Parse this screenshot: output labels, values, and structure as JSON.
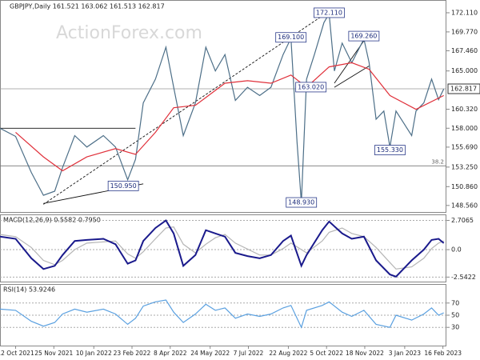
{
  "header": "GBPJPY,Daily  161.521 163.062 161.513 162.817",
  "watermark": "ActionForex.com",
  "chart_data": [
    {
      "type": "line",
      "xlim": [
        "2021-09-24",
        "2023-02-20"
      ],
      "ylim": [
        147.76,
        173.67
      ],
      "grid": false,
      "yticks": [
        {
          "value": 172.11,
          "label": "172.110"
        },
        {
          "value": 169.77,
          "label": "169.770"
        },
        {
          "value": 167.46,
          "label": "167.460"
        },
        {
          "value": 165,
          "label": "165.000"
        },
        {
          "value": 160.32,
          "label": "160.320"
        },
        {
          "value": 158,
          "label": "158.000"
        },
        {
          "value": 155.69,
          "label": "155.690"
        },
        {
          "value": 153.25,
          "label": "153.250"
        },
        {
          "value": 150.86,
          "label": "150.860"
        },
        {
          "value": 148.56,
          "label": "148.560"
        }
      ],
      "last_price": {
        "value": 162.817,
        "label": "162.817"
      },
      "levels": [
        {
          "value": 153.4,
          "label": "38.2"
        }
      ],
      "series": [
        {
          "color": "#4d6f88",
          "x": [
            "2021-09-24",
            "2021-10-12",
            "2021-10-30",
            "2021-11-13",
            "2021-11-26",
            "2021-12-05",
            "2021-12-19",
            "2022-01-02",
            "2022-01-21",
            "2022-02-04",
            "2022-02-18",
            "2022-02-27",
            "2022-03-08",
            "2022-03-22",
            "2022-04-03",
            "2022-04-12",
            "2022-04-23",
            "2022-05-07",
            "2022-05-19",
            "2022-05-30",
            "2022-06-10",
            "2022-06-22",
            "2022-07-06",
            "2022-07-20",
            "2022-08-02",
            "2022-08-16",
            "2022-08-25",
            "2022-09-01",
            "2022-09-06",
            "2022-09-12",
            "2022-09-21",
            "2022-10-02",
            "2022-10-08",
            "2022-10-14",
            "2022-10-23",
            "2022-11-03",
            "2022-11-17",
            "2022-11-23",
            "2022-12-01",
            "2022-12-10",
            "2022-12-17",
            "2022-12-24",
            "2023-01-02",
            "2023-01-11",
            "2023-01-16",
            "2023-01-25",
            "2023-02-03",
            "2023-02-11",
            "2023-02-17"
          ],
          "values": [
            158.0,
            157.0,
            152.6,
            149.8,
            150.3,
            153.2,
            157.1,
            155.7,
            157.1,
            155.7,
            151.7,
            154.2,
            161.1,
            164.0,
            167.9,
            163.0,
            157.1,
            161.1,
            167.9,
            165.0,
            167.0,
            161.4,
            163.0,
            162.0,
            163.0,
            167.0,
            169.0,
            156.3,
            148.9,
            164.0,
            167.0,
            170.9,
            172.0,
            165.0,
            168.4,
            166.0,
            168.9,
            166.0,
            159.1,
            160.1,
            155.7,
            160.1,
            158.6,
            157.1,
            160.1,
            161.1,
            164.0,
            161.5,
            162.8
          ]
        },
        {
          "color": "#e0303a",
          "x": [
            "2021-10-12",
            "2021-11-13",
            "2021-12-05",
            "2022-01-02",
            "2022-02-04",
            "2022-02-27",
            "2022-03-22",
            "2022-04-12",
            "2022-05-07",
            "2022-06-10",
            "2022-07-06",
            "2022-08-02",
            "2022-08-25",
            "2022-09-12",
            "2022-10-08",
            "2022-11-03",
            "2022-11-23",
            "2022-12-17",
            "2023-01-16",
            "2023-02-17"
          ],
          "values": [
            157.5,
            154.5,
            152.8,
            154.5,
            155.5,
            154.8,
            157.5,
            160.5,
            160.8,
            163.5,
            163.8,
            163.5,
            164.5,
            163.0,
            165.5,
            166.0,
            165.2,
            162.0,
            160.3,
            162.0
          ]
        }
      ],
      "trendlines": [
        {
          "x": [
            "2021-11-13",
            "2022-10-08"
          ],
          "values": [
            148.7,
            172.3
          ],
          "dashed": true
        },
        {
          "x": [
            "2021-09-24",
            "2022-02-27"
          ],
          "values": [
            158.0,
            158.0
          ],
          "dashed": false
        },
        {
          "x": [
            "2021-11-13",
            "2022-03-08"
          ],
          "values": [
            148.8,
            151.2
          ],
          "dashed": false
        },
        {
          "x": [
            "2022-10-14",
            "2022-11-23"
          ],
          "values": [
            163.5,
            169.6
          ],
          "dashed": false
        },
        {
          "x": [
            "2022-10-14",
            "2022-11-23"
          ],
          "values": [
            163.0,
            165.6
          ],
          "dashed": false
        }
      ],
      "annotations": [
        {
          "x": "2022-10-08",
          "value": 172.11,
          "label": "172.110"
        },
        {
          "x": "2022-08-25",
          "value": 169.1,
          "label": "169.100"
        },
        {
          "x": "2022-11-17",
          "value": 169.26,
          "label": "169.260"
        },
        {
          "x": "2022-09-17",
          "value": 163.02,
          "label": "163.020"
        },
        {
          "x": "2022-12-17",
          "value": 155.33,
          "label": "155.330"
        },
        {
          "x": "2022-02-13",
          "value": 150.95,
          "label": "150.950"
        },
        {
          "x": "2022-09-06",
          "value": 148.93,
          "label": "148.930"
        }
      ]
    },
    {
      "type": "line",
      "title": "MACD(12,26,9) 0.5582 0.7950",
      "xlim": [
        "2021-09-24",
        "2023-02-20"
      ],
      "ylim": [
        -2.96,
        3.26
      ],
      "grid": true,
      "yticks": [
        2.7065,
        {
          "value": 0,
          "label": "0.0"
        },
        -2.5422
      ],
      "series": [
        {
          "color": "#b5b5b5",
          "x": [
            "2021-09-24",
            "2021-10-12",
            "2021-10-30",
            "2021-11-13",
            "2021-11-26",
            "2021-12-05",
            "2021-12-19",
            "2022-01-02",
            "2022-02-04",
            "2022-02-18",
            "2022-02-27",
            "2022-03-08",
            "2022-03-22",
            "2022-04-03",
            "2022-04-12",
            "2022-04-23",
            "2022-05-07",
            "2022-05-19",
            "2022-05-30",
            "2022-06-10",
            "2022-06-22",
            "2022-07-20",
            "2022-08-02",
            "2022-08-16",
            "2022-08-25",
            "2022-09-06",
            "2022-09-12",
            "2022-09-30",
            "2022-10-08",
            "2022-10-23",
            "2022-11-03",
            "2022-11-17",
            "2022-12-01",
            "2022-12-17",
            "2022-12-24",
            "2023-01-11",
            "2023-01-25",
            "2023-02-03",
            "2023-02-11",
            "2023-02-17"
          ],
          "values": [
            1.4,
            1.2,
            0.2,
            -1.0,
            -1.4,
            -1.0,
            0.0,
            0.6,
            0.8,
            -0.4,
            -0.8,
            -0.2,
            1.0,
            2.0,
            2.1,
            0.5,
            -0.3,
            0.5,
            1.1,
            1.4,
            0.6,
            -0.5,
            -0.5,
            0.1,
            0.6,
            0.0,
            -0.3,
            0.8,
            1.6,
            2.0,
            1.5,
            1.2,
            0.2,
            -1.2,
            -1.8,
            -1.6,
            -0.8,
            0.1,
            0.6,
            0.8
          ]
        },
        {
          "color": "#1a1a8c",
          "x": [
            "2021-09-24",
            "2021-10-12",
            "2021-10-30",
            "2021-11-13",
            "2021-11-26",
            "2021-12-05",
            "2021-12-19",
            "2022-01-02",
            "2022-01-21",
            "2022-02-04",
            "2022-02-18",
            "2022-02-27",
            "2022-03-08",
            "2022-03-22",
            "2022-04-03",
            "2022-04-12",
            "2022-04-23",
            "2022-05-07",
            "2022-05-19",
            "2022-05-30",
            "2022-06-10",
            "2022-06-22",
            "2022-07-06",
            "2022-07-20",
            "2022-08-02",
            "2022-08-16",
            "2022-08-25",
            "2022-09-06",
            "2022-09-12",
            "2022-09-30",
            "2022-10-08",
            "2022-10-23",
            "2022-11-03",
            "2022-11-17",
            "2022-12-01",
            "2022-12-17",
            "2022-12-24",
            "2023-01-11",
            "2023-01-25",
            "2023-02-03",
            "2023-02-11",
            "2023-02-17"
          ],
          "values": [
            1.2,
            1.0,
            -0.8,
            -1.8,
            -1.5,
            -0.5,
            0.8,
            0.9,
            1.0,
            0.5,
            -1.3,
            -1.0,
            0.8,
            2.0,
            2.7,
            1.5,
            -1.5,
            -0.5,
            1.8,
            1.5,
            1.2,
            -0.3,
            -0.6,
            -0.8,
            -0.5,
            0.8,
            1.3,
            -1.5,
            -0.5,
            1.8,
            2.6,
            1.5,
            1.0,
            1.2,
            -1.0,
            -2.3,
            -2.5,
            -1.0,
            0.0,
            0.9,
            1.0,
            0.6
          ]
        }
      ]
    },
    {
      "type": "line",
      "title": "RSI(14) 53.9246",
      "xlim": [
        "2021-09-24",
        "2023-02-20"
      ],
      "ylim": [
        0,
        100
      ],
      "grid": true,
      "yticks": [
        70,
        50,
        30
      ],
      "xticks": [
        {
          "value": "2021-10-12",
          "label": "12 Oct 2021"
        },
        {
          "value": "2021-11-25",
          "label": "25 Nov 2021"
        },
        {
          "value": "2022-01-10",
          "label": "10 Jan 2022"
        },
        {
          "value": "2022-02-23",
          "label": "23 Feb 2022"
        },
        {
          "value": "2022-04-08",
          "label": "8 Apr 2022"
        },
        {
          "value": "2022-05-24",
          "label": "24 May 2022"
        },
        {
          "value": "2022-07-07",
          "label": "7 Jul 2022"
        },
        {
          "value": "2022-08-22",
          "label": "22 Aug 2022"
        },
        {
          "value": "2022-10-05",
          "label": "5 Oct 2022"
        },
        {
          "value": "2022-11-18",
          "label": "18 Nov 2022"
        },
        {
          "value": "2023-01-03",
          "label": "3 Jan 2023"
        },
        {
          "value": "2023-02-16",
          "label": "16 Feb 2023"
        }
      ],
      "series": [
        {
          "color": "#5aa0e0",
          "x": [
            "2021-09-24",
            "2021-10-12",
            "2021-10-30",
            "2021-11-13",
            "2021-11-26",
            "2021-12-05",
            "2021-12-19",
            "2022-01-02",
            "2022-01-21",
            "2022-02-04",
            "2022-02-18",
            "2022-02-27",
            "2022-03-08",
            "2022-03-22",
            "2022-04-03",
            "2022-04-12",
            "2022-04-23",
            "2022-05-07",
            "2022-05-19",
            "2022-05-30",
            "2022-06-10",
            "2022-06-22",
            "2022-07-06",
            "2022-07-20",
            "2022-08-02",
            "2022-08-16",
            "2022-08-25",
            "2022-09-06",
            "2022-09-12",
            "2022-09-30",
            "2022-10-08",
            "2022-10-23",
            "2022-11-03",
            "2022-11-17",
            "2022-12-01",
            "2022-12-17",
            "2022-12-24",
            "2023-01-11",
            "2023-01-25",
            "2023-02-03",
            "2023-02-11",
            "2023-02-17"
          ],
          "values": [
            60,
            58,
            40,
            32,
            38,
            52,
            60,
            55,
            60,
            52,
            35,
            45,
            65,
            72,
            75,
            55,
            38,
            52,
            68,
            58,
            62,
            45,
            52,
            48,
            52,
            62,
            66,
            30,
            58,
            66,
            72,
            55,
            48,
            58,
            35,
            30,
            50,
            42,
            52,
            62,
            50,
            54
          ]
        }
      ]
    }
  ]
}
